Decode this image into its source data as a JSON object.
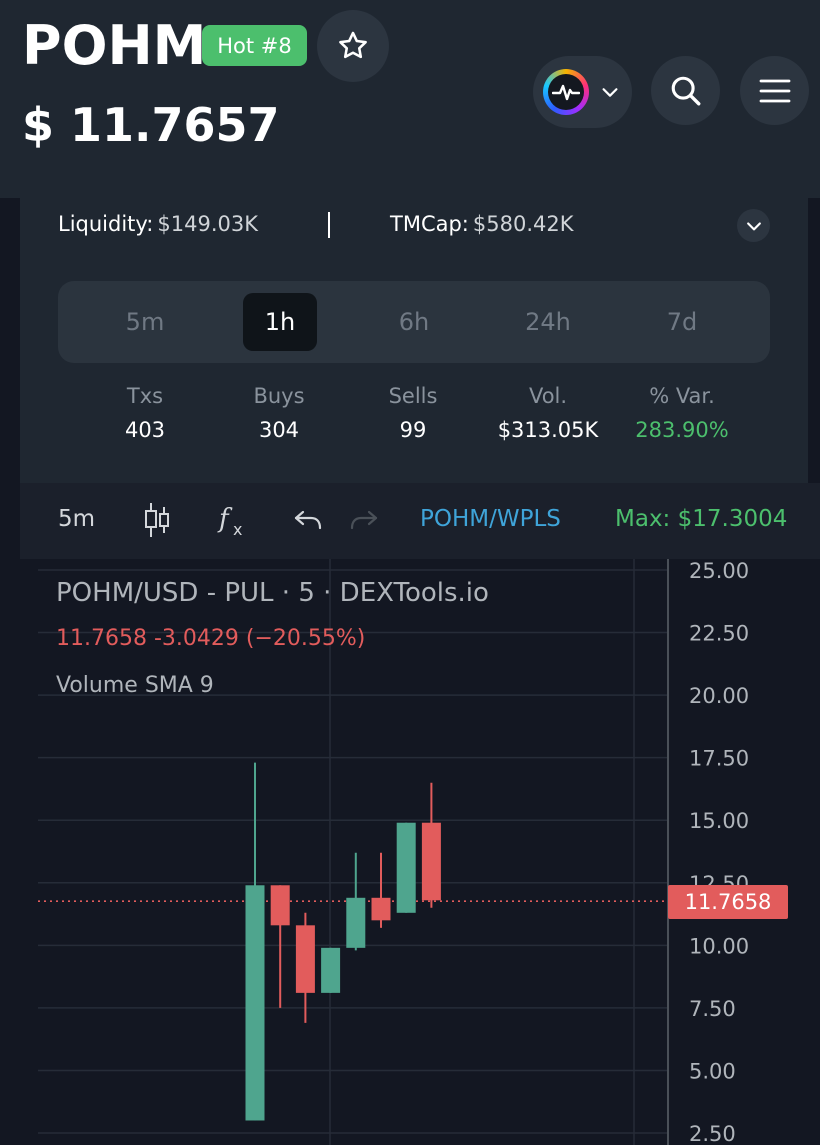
{
  "header": {
    "ticker": "POHM",
    "hot_badge": "Hot #8",
    "price": "$ 11.7657"
  },
  "info": {
    "liquidity_label": "Liquidity:",
    "liquidity_value": "$149.03K",
    "tmcap_label": "TMCap:",
    "tmcap_value": "$580.42K"
  },
  "timeframes": [
    {
      "label": "5m",
      "active": false
    },
    {
      "label": "1h",
      "active": true
    },
    {
      "label": "6h",
      "active": false
    },
    {
      "label": "24h",
      "active": false
    },
    {
      "label": "7d",
      "active": false
    }
  ],
  "stats": [
    {
      "label": "Txs",
      "value": "403"
    },
    {
      "label": "Buys",
      "value": "304"
    },
    {
      "label": "Sells",
      "value": "99"
    },
    {
      "label": "Vol.",
      "value": "$313.05K"
    },
    {
      "label": "% Var.",
      "value": "283.90%"
    }
  ],
  "toolbar": {
    "interval": "5m",
    "pair": "POHM/WPLS",
    "max": "Max: $17.3004"
  },
  "chart_legend": {
    "title": "POHM/USD - PUL · 5 · DEXTools.io",
    "change": "11.7658  -3.0429 (−20.55%)",
    "volume": "Volume SMA 9",
    "current_price_tag": "11.7658"
  },
  "colors": {
    "up": "#4fa58e",
    "down": "#e25c5c",
    "green_text": "#4cbf6d",
    "link": "#3fa4d9"
  },
  "chart_data": {
    "type": "candlestick",
    "title": "POHM/USD - PUL · 5 · DEXTools.io",
    "ylim": [
      2.5,
      25.0
    ],
    "y_ticks": [
      "25.00",
      "22.50",
      "20.00",
      "17.50",
      "15.00",
      "12.50",
      "10.00",
      "7.50",
      "5.00",
      "2.50"
    ],
    "current_price": 11.7658,
    "candles": [
      {
        "open": 3.0,
        "high": 17.3,
        "low": 3.0,
        "close": 12.4
      },
      {
        "open": 12.4,
        "high": 12.4,
        "low": 7.5,
        "close": 10.8
      },
      {
        "open": 10.8,
        "high": 11.3,
        "low": 6.9,
        "close": 8.1
      },
      {
        "open": 8.1,
        "high": 9.9,
        "low": 8.1,
        "close": 9.9
      },
      {
        "open": 9.9,
        "high": 13.7,
        "low": 9.8,
        "close": 11.9
      },
      {
        "open": 11.9,
        "high": 13.7,
        "low": 10.7,
        "close": 11.0
      },
      {
        "open": 11.3,
        "high": 14.9,
        "low": 11.3,
        "close": 14.9
      },
      {
        "open": 14.9,
        "high": 16.5,
        "low": 11.5,
        "close": 11.8
      }
    ]
  }
}
